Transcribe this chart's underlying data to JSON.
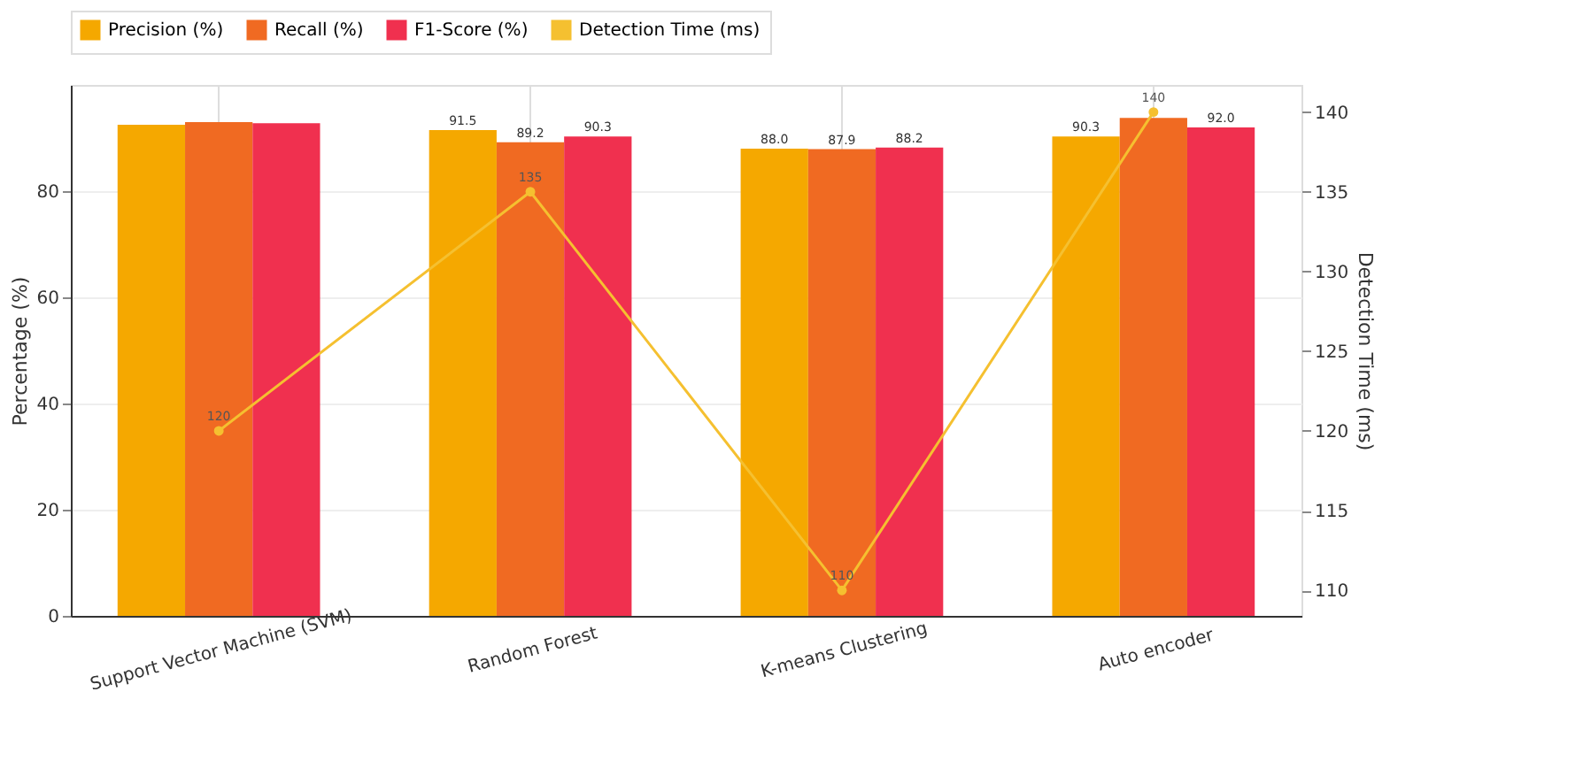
{
  "chart_data": {
    "type": "bar",
    "categories": [
      "Support Vector Machine (SVM)",
      "Random Forest",
      "K-means Clustering",
      "Auto encoder"
    ],
    "ylabel": "Percentage (%)",
    "y2label": "Detection Time (ms)",
    "ylim": [
      0,
      100
    ],
    "yticks": [
      0,
      20,
      40,
      60,
      80
    ],
    "y2lim": [
      108.4,
      141.7
    ],
    "y2ticks": [
      110,
      115,
      120,
      125,
      130,
      135,
      140
    ],
    "grid": true,
    "legend": "top",
    "series": [
      {
        "name": "Precision (%)",
        "color": "#f5a800",
        "values": [
          92.5,
          91.5,
          88.0,
          90.3
        ],
        "value_labels": [
          null,
          "91.5",
          "88.0",
          "90.3"
        ]
      },
      {
        "name": "Recall (%)",
        "color": "#f06a22",
        "values": [
          93.0,
          89.2,
          87.9,
          93.8
        ],
        "value_labels": [
          null,
          "89.2",
          "87.9",
          null
        ]
      },
      {
        "name": "F1-Score (%)",
        "color": "#f0304f",
        "values": [
          92.8,
          90.3,
          88.2,
          92.0
        ],
        "value_labels": [
          null,
          "90.3",
          "88.2",
          "92.0"
        ]
      },
      {
        "name": "Detection Time (ms)",
        "type": "line",
        "axis": "y2",
        "color": "#f5c030",
        "marker": "circle",
        "values": [
          120,
          135,
          110,
          140
        ],
        "value_labels": [
          "120",
          "135",
          "110",
          "140"
        ]
      }
    ]
  }
}
